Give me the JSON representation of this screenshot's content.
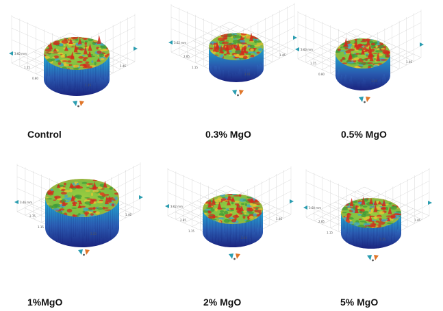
{
  "figure": {
    "panels": [
      {
        "caption": "Control",
        "tick_label": "3.60 mm",
        "axis_labels": [
          "1.15",
          "0.80",
          "1.15",
          "1.46"
        ]
      },
      {
        "caption": "0.3% MgO",
        "tick_label": "3.62 mm",
        "axis_labels": [
          "2.85",
          "1.15",
          "2.01",
          "1.46"
        ]
      },
      {
        "caption": "0.5% MgO",
        "tick_label": "3.60 mm",
        "axis_labels": [
          "1.15",
          "0.80",
          "1.15",
          "1.46"
        ]
      },
      {
        "caption": "1%MgO",
        "tick_label": "3.46 mm",
        "axis_labels": [
          "2.75",
          "1.15",
          "2.20",
          "1.46"
        ]
      },
      {
        "caption": "2% MgO",
        "tick_label": "3.62 mm",
        "axis_labels": [
          "2.85",
          "1.15",
          "2.01",
          "1.46"
        ]
      },
      {
        "caption": "5% MgO",
        "tick_label": "3.60 mm",
        "axis_labels": [
          "2.85",
          "1.15",
          "1.15",
          "1.46"
        ]
      }
    ],
    "colors": {
      "surface_high": "#d42a1c",
      "surface_mid": "#7bc043",
      "surface_low": "#3fa5c9",
      "side_top": "#21b8d8",
      "side_bottom": "#1a237e",
      "grid": "#cfcfcf",
      "axis_icon_teal": "#2a9db0",
      "axis_icon_orange": "#e0762a"
    }
  }
}
